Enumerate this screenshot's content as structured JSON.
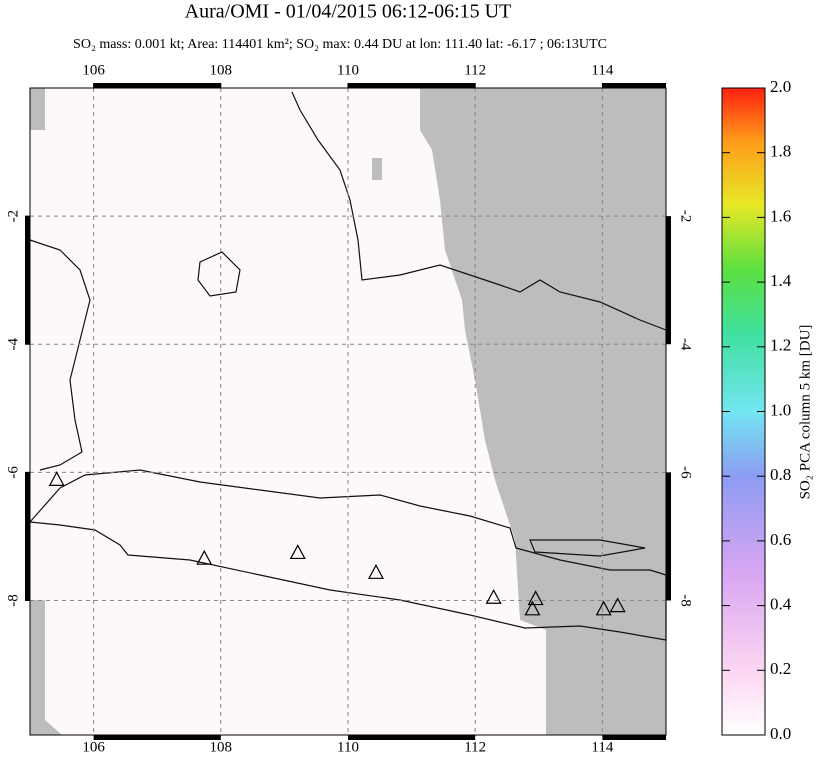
{
  "chart_data": {
    "type": "map",
    "title": "Aura/OMI - 01/04/2015 06:12-06:15 UT",
    "subtitle": "SO₂ mass: 0.001 kt; Area: 114401 km²; SO₂ max: 0.44 DU at lon: 111.40 lat: -6.17 ; 06:13UTC",
    "xlim": [
      105,
      115
    ],
    "xticks": [
      106,
      108,
      110,
      112,
      114
    ],
    "ylim": [
      -10.1,
      0
    ],
    "yticks": [
      -2,
      -4,
      -6,
      -8
    ],
    "grid": true,
    "markers": {
      "lon": [
        105.42,
        107.74,
        109.21,
        110.44,
        112.29,
        112.95,
        112.9,
        114.02,
        114.24
      ],
      "lat": [
        -6.11,
        -7.34,
        -7.25,
        -7.56,
        -7.95,
        -7.97,
        -8.13,
        -8.13,
        -8.08
      ]
    },
    "colorbar": {
      "label": "SO₂ PCA column 5 km [DU]",
      "lim": [
        0,
        2
      ],
      "ticks": [
        {
          "value": 0,
          "label": "0.0"
        },
        {
          "value": 0.2,
          "label": "0.2"
        },
        {
          "value": 0.4,
          "label": "0.4"
        },
        {
          "value": 0.6,
          "label": "0.6"
        },
        {
          "value": 0.8,
          "label": "0.8"
        },
        {
          "value": 1.0,
          "label": "1.0"
        },
        {
          "value": 1.2,
          "label": "1.2"
        },
        {
          "value": 1.4,
          "label": "1.4"
        },
        {
          "value": 1.6,
          "label": "1.6"
        },
        {
          "value": 1.8,
          "label": "1.8"
        },
        {
          "value": 2.0,
          "label": "2.0"
        }
      ]
    }
  }
}
